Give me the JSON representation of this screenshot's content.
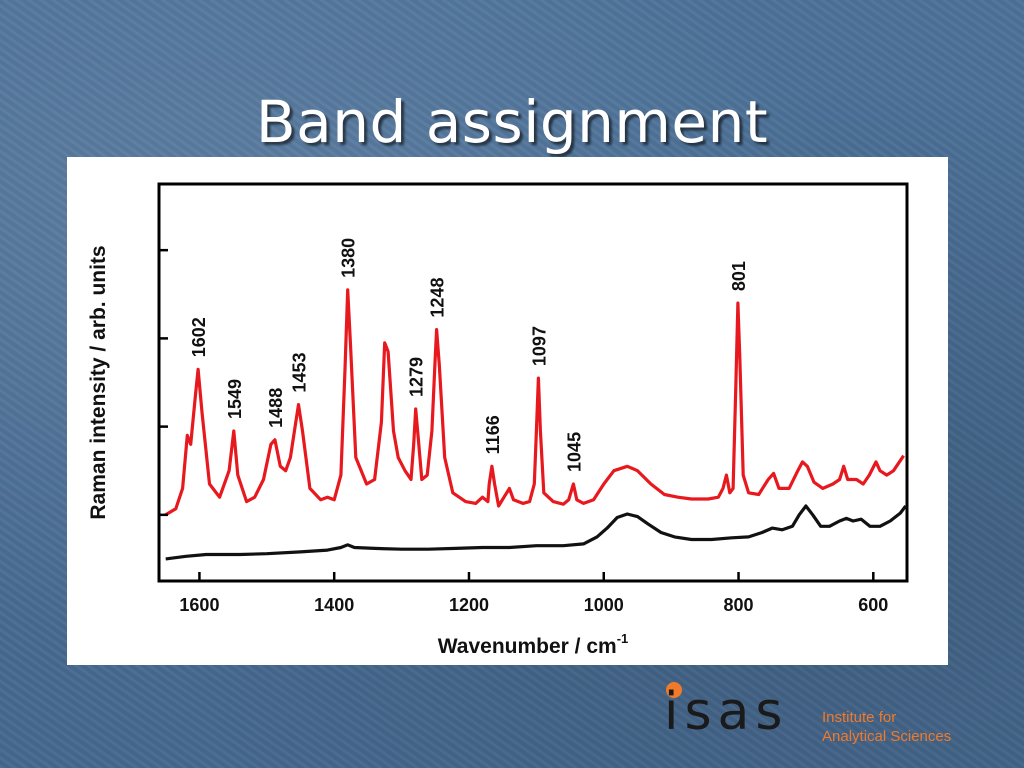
{
  "slide": {
    "title": "Band assignment"
  },
  "logo": {
    "mark": "isas",
    "line1": "Institute for",
    "line2": "Analytical Sciences",
    "color": "#f07a2a"
  },
  "chart_data": {
    "type": "line",
    "xlabel": "Wavenumber / cm",
    "xlabel_sup": "-1",
    "ylabel": "Raman intensity / arb. units",
    "xlim": [
      1660,
      550
    ],
    "x_reversed": true,
    "ylim": [
      0,
      4.5
    ],
    "x_ticks": [
      1600,
      1400,
      1200,
      1000,
      800,
      600
    ],
    "y_ticks": [
      0.75,
      1.75,
      2.75,
      3.75
    ],
    "y_tick_labels_shown": false,
    "grid": false,
    "series": [
      {
        "color": "#e8191e",
        "points": [
          [
            1650,
            0.75
          ],
          [
            1635,
            0.82
          ],
          [
            1625,
            1.05
          ],
          [
            1618,
            1.65
          ],
          [
            1613,
            1.55
          ],
          [
            1606,
            2.1
          ],
          [
            1602,
            2.4
          ],
          [
            1596,
            1.9
          ],
          [
            1585,
            1.1
          ],
          [
            1570,
            0.95
          ],
          [
            1556,
            1.25
          ],
          [
            1549,
            1.7
          ],
          [
            1543,
            1.2
          ],
          [
            1530,
            0.9
          ],
          [
            1518,
            0.95
          ],
          [
            1505,
            1.15
          ],
          [
            1494,
            1.55
          ],
          [
            1488,
            1.6
          ],
          [
            1480,
            1.3
          ],
          [
            1472,
            1.25
          ],
          [
            1465,
            1.4
          ],
          [
            1458,
            1.75
          ],
          [
            1453,
            2.0
          ],
          [
            1447,
            1.7
          ],
          [
            1436,
            1.05
          ],
          [
            1420,
            0.92
          ],
          [
            1410,
            0.95
          ],
          [
            1400,
            0.92
          ],
          [
            1390,
            1.2
          ],
          [
            1384,
            2.4
          ],
          [
            1380,
            3.3
          ],
          [
            1376,
            2.7
          ],
          [
            1368,
            1.4
          ],
          [
            1352,
            1.1
          ],
          [
            1340,
            1.15
          ],
          [
            1330,
            1.8
          ],
          [
            1325,
            2.7
          ],
          [
            1320,
            2.6
          ],
          [
            1312,
            1.7
          ],
          [
            1305,
            1.4
          ],
          [
            1295,
            1.25
          ],
          [
            1286,
            1.15
          ],
          [
            1282,
            1.55
          ],
          [
            1279,
            1.95
          ],
          [
            1275,
            1.6
          ],
          [
            1270,
            1.15
          ],
          [
            1262,
            1.2
          ],
          [
            1255,
            1.7
          ],
          [
            1250,
            2.55
          ],
          [
            1248,
            2.85
          ],
          [
            1244,
            2.45
          ],
          [
            1236,
            1.4
          ],
          [
            1224,
            1.0
          ],
          [
            1205,
            0.9
          ],
          [
            1190,
            0.88
          ],
          [
            1180,
            0.95
          ],
          [
            1172,
            0.9
          ],
          [
            1170,
            1.1
          ],
          [
            1166,
            1.3
          ],
          [
            1162,
            1.1
          ],
          [
            1156,
            0.85
          ],
          [
            1148,
            0.95
          ],
          [
            1140,
            1.05
          ],
          [
            1134,
            0.92
          ],
          [
            1120,
            0.88
          ],
          [
            1110,
            0.9
          ],
          [
            1103,
            1.1
          ],
          [
            1100,
            1.7
          ],
          [
            1097,
            2.3
          ],
          [
            1094,
            1.7
          ],
          [
            1089,
            1.0
          ],
          [
            1075,
            0.9
          ],
          [
            1060,
            0.87
          ],
          [
            1052,
            0.92
          ],
          [
            1045,
            1.1
          ],
          [
            1040,
            0.92
          ],
          [
            1030,
            0.88
          ],
          [
            1015,
            0.92
          ],
          [
            1000,
            1.1
          ],
          [
            985,
            1.25
          ],
          [
            965,
            1.3
          ],
          [
            950,
            1.25
          ],
          [
            930,
            1.1
          ],
          [
            910,
            0.98
          ],
          [
            890,
            0.95
          ],
          [
            870,
            0.93
          ],
          [
            845,
            0.93
          ],
          [
            830,
            0.95
          ],
          [
            823,
            1.05
          ],
          [
            818,
            1.2
          ],
          [
            813,
            1.0
          ],
          [
            808,
            1.05
          ],
          [
            804,
            2.2
          ],
          [
            801,
            3.15
          ],
          [
            798,
            2.5
          ],
          [
            793,
            1.2
          ],
          [
            785,
            1.0
          ],
          [
            770,
            0.98
          ],
          [
            756,
            1.15
          ],
          [
            748,
            1.22
          ],
          [
            740,
            1.05
          ],
          [
            725,
            1.05
          ],
          [
            712,
            1.25
          ],
          [
            705,
            1.35
          ],
          [
            698,
            1.3
          ],
          [
            688,
            1.12
          ],
          [
            675,
            1.05
          ],
          [
            660,
            1.1
          ],
          [
            650,
            1.15
          ],
          [
            644,
            1.3
          ],
          [
            638,
            1.15
          ],
          [
            625,
            1.15
          ],
          [
            615,
            1.1
          ],
          [
            606,
            1.2
          ],
          [
            596,
            1.35
          ],
          [
            590,
            1.25
          ],
          [
            580,
            1.2
          ],
          [
            570,
            1.25
          ],
          [
            555,
            1.42
          ]
        ]
      },
      {
        "color": "#111111",
        "points": [
          [
            1650,
            0.25
          ],
          [
            1620,
            0.28
          ],
          [
            1590,
            0.3
          ],
          [
            1540,
            0.3
          ],
          [
            1500,
            0.31
          ],
          [
            1450,
            0.33
          ],
          [
            1410,
            0.35
          ],
          [
            1390,
            0.38
          ],
          [
            1380,
            0.41
          ],
          [
            1370,
            0.38
          ],
          [
            1340,
            0.37
          ],
          [
            1300,
            0.36
          ],
          [
            1260,
            0.36
          ],
          [
            1220,
            0.37
          ],
          [
            1180,
            0.38
          ],
          [
            1140,
            0.38
          ],
          [
            1100,
            0.4
          ],
          [
            1060,
            0.4
          ],
          [
            1030,
            0.42
          ],
          [
            1010,
            0.5
          ],
          [
            995,
            0.6
          ],
          [
            980,
            0.72
          ],
          [
            965,
            0.76
          ],
          [
            950,
            0.73
          ],
          [
            935,
            0.65
          ],
          [
            915,
            0.55
          ],
          [
            895,
            0.5
          ],
          [
            870,
            0.47
          ],
          [
            840,
            0.47
          ],
          [
            810,
            0.49
          ],
          [
            785,
            0.5
          ],
          [
            765,
            0.55
          ],
          [
            750,
            0.6
          ],
          [
            735,
            0.58
          ],
          [
            720,
            0.62
          ],
          [
            710,
            0.75
          ],
          [
            700,
            0.85
          ],
          [
            690,
            0.75
          ],
          [
            678,
            0.62
          ],
          [
            665,
            0.62
          ],
          [
            650,
            0.68
          ],
          [
            640,
            0.71
          ],
          [
            630,
            0.68
          ],
          [
            618,
            0.7
          ],
          [
            605,
            0.62
          ],
          [
            590,
            0.62
          ],
          [
            575,
            0.68
          ],
          [
            560,
            0.77
          ],
          [
            552,
            0.85
          ]
        ]
      }
    ],
    "annotations": [
      {
        "label": "1602",
        "x": 1602,
        "y": 2.4
      },
      {
        "label": "1549",
        "x": 1549,
        "y": 1.7
      },
      {
        "label": "1488",
        "x": 1488,
        "y": 1.6
      },
      {
        "label": "1453",
        "x": 1453,
        "y": 2.0
      },
      {
        "label": "1380",
        "x": 1380,
        "y": 3.3
      },
      {
        "label": "1279",
        "x": 1279,
        "y": 1.95
      },
      {
        "label": "1248",
        "x": 1248,
        "y": 2.85
      },
      {
        "label": "1166",
        "x": 1166,
        "y": 1.3
      },
      {
        "label": "1097",
        "x": 1097,
        "y": 2.3
      },
      {
        "label": "1045",
        "x": 1045,
        "y": 1.1
      },
      {
        "label": "801",
        "x": 801,
        "y": 3.15
      }
    ]
  }
}
